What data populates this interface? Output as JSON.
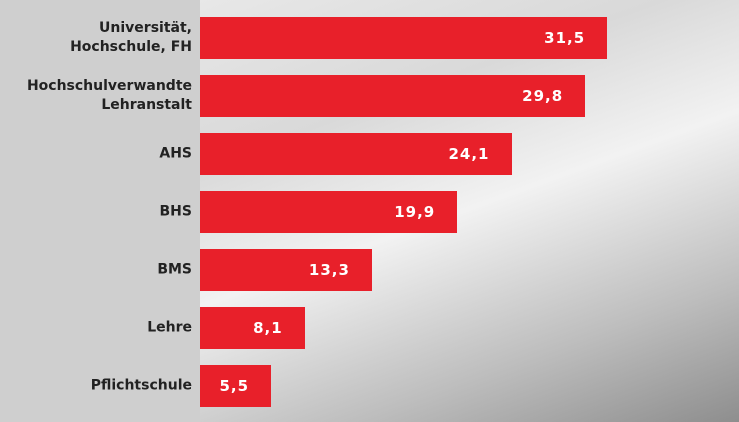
{
  "chart_data": {
    "type": "barh",
    "categories": [
      "Universität,\nHochschule, FH",
      "Hochschulverwandte\nLehranstalt",
      "AHS",
      "BHS",
      "BMS",
      "Lehre",
      "Pflichtschule"
    ],
    "values": [
      31.5,
      29.8,
      24.1,
      19.9,
      13.3,
      8.1,
      5.5
    ],
    "value_labels": [
      "31,5",
      "29,8",
      "24,1",
      "19,9",
      "13,3",
      "8,1",
      "5,5"
    ],
    "color": "#e8202a",
    "xlim": [
      0,
      41.7
    ]
  }
}
